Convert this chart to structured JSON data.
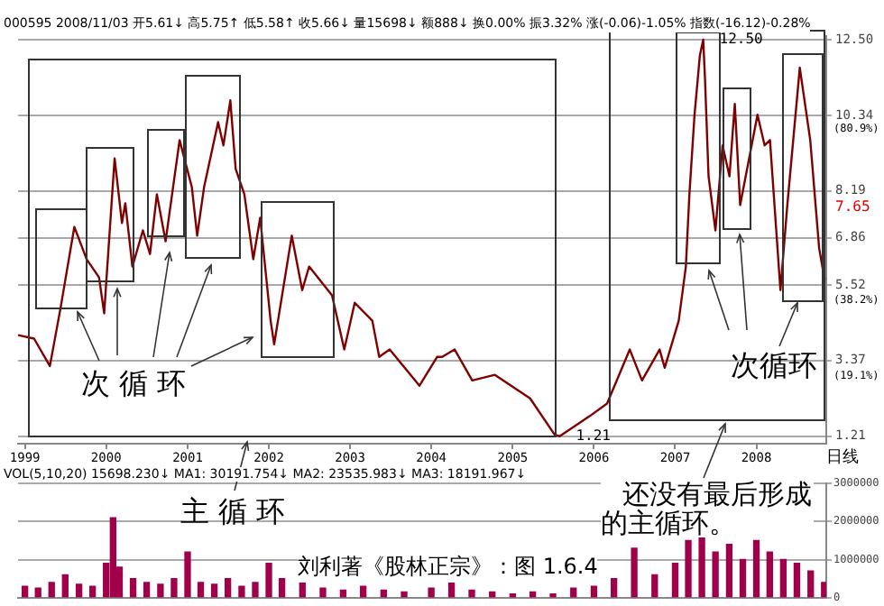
{
  "chart_data": [
    {
      "type": "line",
      "subtitle": "000595 2008/11/03 开5.61↓ 高5.75↑ 低5.58↑ 收5.66↓ 量15698↓ 额888↓ 换0.00% 振3.32% 涨(-0.06)-1.05% 指数(-16.12)-0.28%",
      "x": [
        "1998-12-01",
        "1999-02-11",
        "1999-04-23",
        "1999-06-10",
        "1999-08-11",
        "1999-10-05",
        "1999-11-30",
        "1999-12-23",
        "2000-02-08",
        "2000-03-12",
        "2000-03-27",
        "2000-04-28",
        "2000-06-14",
        "2000-07-16",
        "2000-08-16",
        "2000-09-24",
        "2000-11-26",
        "2001-01-20",
        "2001-02-13",
        "2001-03-16",
        "2001-05-18",
        "2001-06-11",
        "2001-07-12",
        "2001-08-05",
        "2001-09-13",
        "2001-10-23",
        "2001-11-23",
        "2002-01-09",
        "2002-01-25",
        "2002-04-14",
        "2002-05-31",
        "2002-07-01",
        "2002-10-12",
        "2002-12-06",
        "2003-01-22",
        "2003-04-11",
        "2003-05-12",
        "2003-06-28",
        "2003-11-09",
        "2004-01-27",
        "2004-02-19",
        "2004-04-15",
        "2004-07-03",
        "2004-10-13",
        "2005-03-20",
        "2005-07-08",
        "2005-07-31",
        "2005-12-12",
        "2006-03-01",
        "2006-06-11",
        "2006-08-05",
        "2006-10-23",
        "2006-11-15",
        "2007-01-17",
        "2007-02-18",
        "2007-03-06",
        "2007-03-29",
        "2007-04-22",
        "2007-05-07",
        "2007-05-15",
        "2007-05-31",
        "2007-07-01",
        "2007-08-02",
        "2007-09-02",
        "2007-09-26",
        "2007-10-20",
        "2008-01-06",
        "2008-02-07",
        "2008-03-02",
        "2008-04-18",
        "2008-05-19",
        "2008-07-14",
        "2008-08-30",
        "2008-10-09",
        "2008-11-03"
      ],
      "series": [
        {
          "color": "#800000",
          "values": [
            4.09,
            3.99,
            3.21,
            4.86,
            7.17,
            6.25,
            5.73,
            4.71,
            9.12,
            7.28,
            7.84,
            6.04,
            7.07,
            6.4,
            8.1,
            6.76,
            9.64,
            8.3,
            6.92,
            8.3,
            10.15,
            9.49,
            10.77,
            8.82,
            8.1,
            6.25,
            7.43,
            4.5,
            3.83,
            6.92,
            5.37,
            6.04,
            5.22,
            3.68,
            5.01,
            4.5,
            3.47,
            3.68,
            2.65,
            3.47,
            3.47,
            3.68,
            2.8,
            2.96,
            2.29,
            1.26,
            1.21,
            1.78,
            2.14,
            3.68,
            2.8,
            3.68,
            3.16,
            4.5,
            6.04,
            8.1,
            10.36,
            12.05,
            12.5,
            11.39,
            8.61,
            7.07,
            9.49,
            8.61,
            10.67,
            7.79,
            10.36,
            9.49,
            9.64,
            5.37,
            7.79,
            11.7,
            9.64,
            6.56,
            5.66
          ]
        }
      ],
      "xlim": [
        "1998-12-01",
        "2008-11-10"
      ],
      "xticks": [
        "1999",
        "2000",
        "2001",
        "2002",
        "2003",
        "2004",
        "2005",
        "2006",
        "2007",
        "2008"
      ],
      "ylim": [
        1.0,
        12.6
      ],
      "yticks": [
        1.21,
        3.37,
        5.52,
        6.86,
        8.19,
        10.34,
        {
          "value": 12.5,
          "label": "12.50"
        }
      ],
      "grid": "y",
      "legend": false,
      "annotations": [
        {
          "text": "12.50",
          "x": "2007-05-07",
          "y": 12.5
        },
        {
          "text": "1.21",
          "x": "2005-07-31",
          "y": 1.21
        },
        "次 循 环",
        "次循环",
        "主 循 环",
        "还没有最后形成的主循环。",
        "刘利著《股林正宗》：图 1.6.4",
        "日线",
        "7.65",
        "(80.9%)",
        "(38.2%)",
        "(19.1%)"
      ]
    },
    {
      "type": "bar",
      "subtitle": "VOL(5,10,20) 15698.230↓ MA1: 30191.754↓ MA2: 23535.983↓ MA3: 18191.967↓",
      "x": [
        "1999-01",
        "1999-03",
        "1999-05",
        "1999-07",
        "1999-09",
        "1999-11",
        "2000-01",
        "2000-02",
        "2000-03",
        "2000-05",
        "2000-07",
        "2000-09",
        "2000-11",
        "2001-01",
        "2001-03",
        "2001-05",
        "2001-07",
        "2001-09",
        "2001-11",
        "2002-01",
        "2002-03",
        "2002-06",
        "2002-09",
        "2002-12",
        "2003-03",
        "2003-06",
        "2003-09",
        "2004-01",
        "2004-04",
        "2004-07",
        "2004-10",
        "2005-01",
        "2005-04",
        "2005-07",
        "2005-10",
        "2006-01",
        "2006-04",
        "2006-07",
        "2006-10",
        "2007-01",
        "2007-03",
        "2007-05",
        "2007-07",
        "2007-09",
        "2007-11",
        "2008-01",
        "2008-03",
        "2008-05",
        "2008-07",
        "2008-09",
        "2008-11"
      ],
      "values": [
        300000,
        250000,
        400000,
        600000,
        350000,
        300000,
        900000,
        2100000,
        800000,
        500000,
        400000,
        350000,
        500000,
        1200000,
        400000,
        350000,
        500000,
        300000,
        400000,
        900000,
        500000,
        400000,
        250000,
        200000,
        300000,
        200000,
        150000,
        250000,
        400000,
        200000,
        150000,
        100000,
        150000,
        100000,
        250000,
        300000,
        500000,
        1300000,
        600000,
        900000,
        1500000,
        1600000,
        1200000,
        1400000,
        1000000,
        1500000,
        1200000,
        1000000,
        900000,
        700000,
        400000
      ],
      "color": "#a0004a",
      "xlim": [
        "1998-12-01",
        "2008-11-10"
      ],
      "ylim": [
        0,
        3000000
      ],
      "yticks": [
        0,
        1000000,
        2000000,
        3000000
      ],
      "tick_labels": "y",
      "grid": "y",
      "legend": false
    }
  ]
}
